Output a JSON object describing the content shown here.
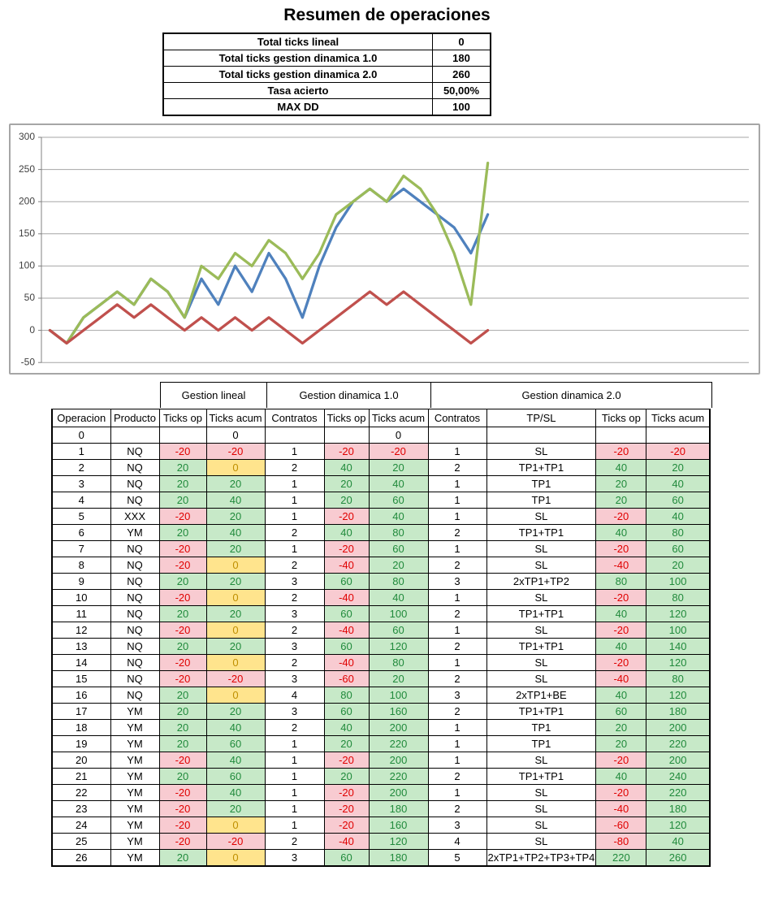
{
  "title": "Resumen de operaciones",
  "summary": {
    "rows": [
      {
        "label": "Total ticks lineal",
        "value": "0"
      },
      {
        "label": "Total ticks gestion dinamica 1.0",
        "value": "180"
      },
      {
        "label": "Total ticks gestion dinamica 2.0",
        "value": "260"
      },
      {
        "label": "Tasa acierto",
        "value": "50,00%"
      },
      {
        "label": "MAX DD",
        "value": "100"
      }
    ]
  },
  "chart_data": {
    "type": "line",
    "title": "",
    "xlabel": "",
    "ylabel": "",
    "x": [
      0,
      1,
      2,
      3,
      4,
      5,
      6,
      7,
      8,
      9,
      10,
      11,
      12,
      13,
      14,
      15,
      16,
      17,
      18,
      19,
      20,
      21,
      22,
      23,
      24,
      25,
      26
    ],
    "series": [
      {
        "name": "Gestion lineal (ticks acum)",
        "color": "#C0504D",
        "values": [
          0,
          -20,
          0,
          20,
          40,
          20,
          40,
          20,
          0,
          20,
          0,
          20,
          0,
          20,
          0,
          -20,
          0,
          20,
          40,
          60,
          40,
          60,
          40,
          20,
          0,
          -20,
          0
        ]
      },
      {
        "name": "Gestion dinamica 1.0 (ticks acum)",
        "color": "#4F81BD",
        "values": [
          0,
          -20,
          20,
          40,
          60,
          40,
          80,
          60,
          20,
          80,
          40,
          100,
          60,
          120,
          80,
          20,
          100,
          160,
          200,
          220,
          200,
          220,
          200,
          180,
          160,
          120,
          180
        ]
      },
      {
        "name": "Gestion dinamica 2.0 (ticks acum)",
        "color": "#9BBB59",
        "values": [
          0,
          -20,
          20,
          40,
          60,
          40,
          80,
          60,
          20,
          100,
          80,
          120,
          100,
          140,
          120,
          80,
          120,
          180,
          200,
          220,
          200,
          240,
          220,
          180,
          120,
          40,
          260
        ]
      }
    ],
    "ylim": [
      -50,
      300
    ],
    "yticks": [
      300,
      250,
      200,
      150,
      100,
      50,
      0,
      -50
    ],
    "grid": true,
    "legend": "none",
    "total_x_slots": 42
  },
  "table": {
    "groups": [
      {
        "label": "Gestion lineal",
        "span": 2
      },
      {
        "label": "Gestion dinamica 1.0",
        "span": 3
      },
      {
        "label": "Gestion dinamica 2.0",
        "span": 4
      }
    ],
    "columns": [
      "Operacion",
      "Producto",
      "Ticks op",
      "Ticks acum",
      "Contratos",
      "Ticks op",
      "Ticks acum",
      "Contratos",
      "TP/SL",
      "Ticks op",
      "Ticks acum"
    ],
    "colored_columns": [
      2,
      3,
      5,
      6,
      9,
      10
    ],
    "baseline_row": [
      "0",
      "",
      "",
      "0",
      "",
      "",
      "0",
      "",
      "",
      "",
      ""
    ],
    "rows": [
      [
        "1",
        "NQ",
        -20,
        -20,
        "1",
        -20,
        -20,
        "1",
        "SL",
        -20,
        -20
      ],
      [
        "2",
        "NQ",
        20,
        0,
        "2",
        40,
        20,
        "2",
        "TP1+TP1",
        40,
        20
      ],
      [
        "3",
        "NQ",
        20,
        20,
        "1",
        20,
        40,
        "1",
        "TP1",
        20,
        40
      ],
      [
        "4",
        "NQ",
        20,
        40,
        "1",
        20,
        60,
        "1",
        "TP1",
        20,
        60
      ],
      [
        "5",
        "XXX",
        -20,
        20,
        "1",
        -20,
        40,
        "1",
        "SL",
        -20,
        40
      ],
      [
        "6",
        "YM",
        20,
        40,
        "2",
        40,
        80,
        "2",
        "TP1+TP1",
        40,
        80
      ],
      [
        "7",
        "NQ",
        -20,
        20,
        "1",
        -20,
        60,
        "1",
        "SL",
        -20,
        60
      ],
      [
        "8",
        "NQ",
        -20,
        0,
        "2",
        -40,
        20,
        "2",
        "SL",
        -40,
        20
      ],
      [
        "9",
        "NQ",
        20,
        20,
        "3",
        60,
        80,
        "3",
        "2xTP1+TP2",
        80,
        100
      ],
      [
        "10",
        "NQ",
        -20,
        0,
        "2",
        -40,
        40,
        "1",
        "SL",
        -20,
        80
      ],
      [
        "11",
        "NQ",
        20,
        20,
        "3",
        60,
        100,
        "2",
        "TP1+TP1",
        40,
        120
      ],
      [
        "12",
        "NQ",
        -20,
        0,
        "2",
        -40,
        60,
        "1",
        "SL",
        -20,
        100
      ],
      [
        "13",
        "NQ",
        20,
        20,
        "3",
        60,
        120,
        "2",
        "TP1+TP1",
        40,
        140
      ],
      [
        "14",
        "NQ",
        -20,
        0,
        "2",
        -40,
        80,
        "1",
        "SL",
        -20,
        120
      ],
      [
        "15",
        "NQ",
        -20,
        -20,
        "3",
        -60,
        20,
        "2",
        "SL",
        -40,
        80
      ],
      [
        "16",
        "NQ",
        20,
        0,
        "4",
        80,
        100,
        "3",
        "2xTP1+BE",
        40,
        120
      ],
      [
        "17",
        "YM",
        20,
        20,
        "3",
        60,
        160,
        "2",
        "TP1+TP1",
        60,
        180
      ],
      [
        "18",
        "YM",
        20,
        40,
        "2",
        40,
        200,
        "1",
        "TP1",
        20,
        200
      ],
      [
        "19",
        "YM",
        20,
        60,
        "1",
        20,
        220,
        "1",
        "TP1",
        20,
        220
      ],
      [
        "20",
        "YM",
        -20,
        40,
        "1",
        -20,
        200,
        "1",
        "SL",
        -20,
        200
      ],
      [
        "21",
        "YM",
        20,
        60,
        "1",
        20,
        220,
        "2",
        "TP1+TP1",
        40,
        240
      ],
      [
        "22",
        "YM",
        -20,
        40,
        "1",
        -20,
        200,
        "1",
        "SL",
        -20,
        220
      ],
      [
        "23",
        "YM",
        -20,
        20,
        "1",
        -20,
        180,
        "2",
        "SL",
        -40,
        180
      ],
      [
        "24",
        "YM",
        -20,
        0,
        "1",
        -20,
        160,
        "3",
        "SL",
        -60,
        120
      ],
      [
        "25",
        "YM",
        -20,
        -20,
        "2",
        -40,
        120,
        "4",
        "SL",
        -80,
        40
      ],
      [
        "26",
        "YM",
        20,
        0,
        "3",
        60,
        180,
        "5",
        "2xTP1+TP2+TP3+TP4",
        220,
        260
      ]
    ]
  },
  "colors": {
    "negative_bg": "#F8CBD1",
    "negative_text": "#E00000",
    "positive_bg": "#C7E9C8",
    "positive_text": "#218A3C",
    "zero_bg": "#FFE48D",
    "zero_text": "#BF8F00",
    "gridline": "#A6A6A6",
    "axis": "#808080",
    "tick_label": "#404040"
  }
}
